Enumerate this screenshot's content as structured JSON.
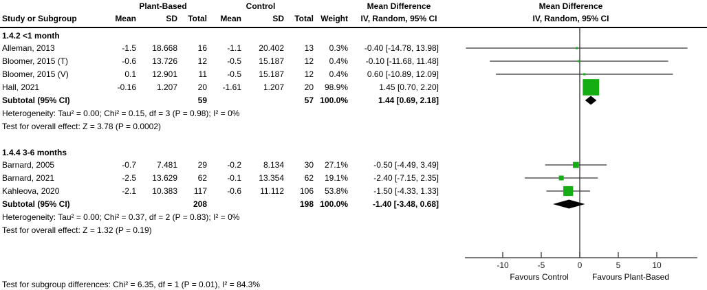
{
  "header": {
    "group1_label": "Plant-Based",
    "group2_label": "Control",
    "study_col": "Study or Subgroup",
    "data_cols": [
      "Mean",
      "SD",
      "Total",
      "Mean",
      "SD",
      "Total",
      "Weight"
    ],
    "md_title_left": "Mean Difference",
    "md_sub_left": "IV, Random, 95% CI",
    "md_title_right": "Mean Difference",
    "md_sub_right": "IV, Random, 95% CI"
  },
  "colors": {
    "square_green": "#14ad14",
    "diamond_black": "#000000",
    "ci_line": "#333333",
    "axis": "#4d4d4d"
  },
  "chart_data": {
    "type": "forest",
    "effect_measure": "Mean Difference, IV, Random, 95% CI",
    "subgroups": [
      {
        "label": "1.4.2 <1 month",
        "studies": [
          {
            "study": "Alleman, 2013",
            "mean_pb": "-1.5",
            "sd_pb": "18.668",
            "total_pb": "16",
            "mean_c": "-1.1",
            "sd_c": "20.402",
            "total_c": "13",
            "weight": "0.3%",
            "weight_pct": 0.3,
            "ci_text": "-0.40 [-14.78, 13.98]",
            "est": -0.4,
            "lo": -14.78,
            "hi": 13.98
          },
          {
            "study": "Bloomer, 2015 (T)",
            "mean_pb": "-0.6",
            "sd_pb": "13.726",
            "total_pb": "12",
            "mean_c": "-0.5",
            "sd_c": "15.187",
            "total_c": "12",
            "weight": "0.4%",
            "weight_pct": 0.4,
            "ci_text": "-0.10 [-11.68, 11.48]",
            "est": -0.1,
            "lo": -11.68,
            "hi": 11.48
          },
          {
            "study": "Bloomer, 2015 (V)",
            "mean_pb": "0.1",
            "sd_pb": "12.901",
            "total_pb": "11",
            "mean_c": "-0.5",
            "sd_c": "15.187",
            "total_c": "12",
            "weight": "0.4%",
            "weight_pct": 0.4,
            "ci_text": "0.60 [-10.89, 12.09]",
            "est": 0.6,
            "lo": -10.89,
            "hi": 12.09
          },
          {
            "study": "Hall, 2021",
            "mean_pb": "-0.16",
            "sd_pb": "1.207",
            "total_pb": "20",
            "mean_c": "-1.61",
            "sd_c": "1.207",
            "total_c": "20",
            "weight": "98.9%",
            "weight_pct": 98.9,
            "ci_text": "1.45 [0.70, 2.20]",
            "est": 1.45,
            "lo": 0.7,
            "hi": 2.2
          }
        ],
        "subtotal": {
          "label": "Subtotal (95% CI)",
          "total_pb": "59",
          "total_c": "57",
          "weight": "100.0%",
          "ci_text": "1.44 [0.69, 2.18]",
          "est": 1.44,
          "lo": 0.69,
          "hi": 2.18
        },
        "heterogeneity": "Heterogeneity: Tau² = 0.00; Chi² = 0.15, df = 3 (P = 0.98); I² = 0%",
        "overall_effect": "Test for overall effect: Z = 3.78 (P = 0.0002)"
      },
      {
        "label": "1.4.4 3-6 months",
        "studies": [
          {
            "study": "Barnard, 2005",
            "mean_pb": "-0.7",
            "sd_pb": "7.481",
            "total_pb": "29",
            "mean_c": "-0.2",
            "sd_c": "8.134",
            "total_c": "30",
            "weight": "27.1%",
            "weight_pct": 27.1,
            "ci_text": "-0.50 [-4.49, 3.49]",
            "est": -0.5,
            "lo": -4.49,
            "hi": 3.49
          },
          {
            "study": "Barnard, 2021",
            "mean_pb": "-2.5",
            "sd_pb": "13.629",
            "total_pb": "62",
            "mean_c": "-0.1",
            "sd_c": "13.354",
            "total_c": "62",
            "weight": "19.1%",
            "weight_pct": 19.1,
            "ci_text": "-2.40 [-7.15, 2.35]",
            "est": -2.4,
            "lo": -7.15,
            "hi": 2.35
          },
          {
            "study": "Kahleova, 2020",
            "mean_pb": "-2.1",
            "sd_pb": "10.383",
            "total_pb": "117",
            "mean_c": "-0.6",
            "sd_c": "11.112",
            "total_c": "106",
            "weight": "53.8%",
            "weight_pct": 53.8,
            "ci_text": "-1.50 [-4.33, 1.33]",
            "est": -1.5,
            "lo": -4.33,
            "hi": 1.33
          }
        ],
        "subtotal": {
          "label": "Subtotal (95% CI)",
          "total_pb": "208",
          "total_c": "198",
          "weight": "100.0%",
          "ci_text": "-1.40 [-3.48, 0.68]",
          "est": -1.4,
          "lo": -3.48,
          "hi": 0.68
        },
        "heterogeneity": "Heterogeneity: Tau² = 0.00; Chi² = 0.37, df = 2 (P = 0.83); I² = 0%",
        "overall_effect": "Test for overall effect: Z = 1.32 (P = 0.19)"
      }
    ],
    "axis": {
      "ticks": [
        -10,
        -5,
        0,
        5,
        10
      ],
      "xmin": -15,
      "xmax": 15.3,
      "left_label": "Favours Control",
      "right_label": "Favours Plant-Based"
    },
    "footer": "Test for subgroup differences: Chi² = 6.35, df = 1 (P = 0.01), I² = 84.3%"
  }
}
